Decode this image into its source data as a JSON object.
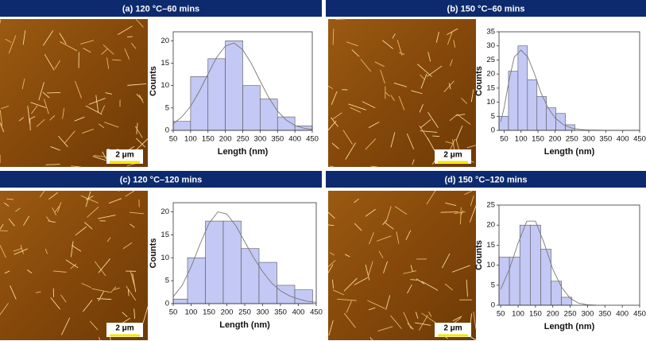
{
  "chart_data": [
    {
      "type": "histogram",
      "title": "(a) 120 °C–60 mins",
      "scale_bar": "2 μm",
      "x_label": "Length (nm)",
      "y_label": "Counts",
      "bins": [
        50,
        100,
        150,
        200,
        250,
        300,
        350,
        400,
        450
      ],
      "values": [
        2,
        12,
        16,
        20,
        10,
        7,
        3,
        1
      ],
      "color": "#c3c8f5",
      "fit": {
        "color": "#777777",
        "x": [
          50,
          75,
          100,
          125,
          150,
          175,
          200,
          225,
          250,
          275,
          300,
          325,
          350,
          375,
          400,
          425,
          450
        ],
        "values": [
          1.5,
          3.0,
          5.4,
          8.7,
          12.6,
          16.3,
          18.8,
          19.5,
          18.0,
          14.9,
          11.0,
          7.3,
          4.3,
          2.3,
          1.1,
          0.5,
          0.2
        ]
      },
      "xlim": [
        50,
        450
      ],
      "xticks": [
        50,
        100,
        150,
        200,
        250,
        300,
        350,
        400,
        450
      ],
      "ylim": [
        0,
        22
      ],
      "yticks": [
        0,
        5,
        10,
        15,
        20
      ]
    },
    {
      "type": "histogram",
      "title": "(b) 150 °C–60 mins",
      "scale_bar": "2 μm",
      "x_label": "Length (nm)",
      "y_label": "Counts",
      "bins": [
        35,
        63,
        91,
        119,
        147,
        175,
        203,
        231,
        259
      ],
      "values": [
        5,
        21,
        30,
        18,
        12,
        8,
        6,
        2
      ],
      "color": "#c3c8f5",
      "fit": {
        "color": "#777777",
        "x": [
          40,
          50,
          65,
          80,
          100,
          120,
          140,
          160,
          180,
          200,
          225,
          250,
          275,
          300,
          350,
          400,
          450
        ],
        "values": [
          3,
          8,
          18,
          26,
          28.5,
          26,
          20,
          13,
          8,
          4.5,
          2,
          0.8,
          0.3,
          0.1,
          0,
          0,
          0
        ]
      },
      "xlim": [
        35,
        450
      ],
      "xticks": [
        50,
        100,
        150,
        200,
        250,
        300,
        350,
        400,
        450
      ],
      "ylim": [
        0,
        35
      ],
      "yticks": [
        0,
        5,
        10,
        15,
        20,
        25,
        30,
        35
      ]
    },
    {
      "type": "histogram",
      "title": "(c) 120 °C–120 mins",
      "scale_bar": "2 μm",
      "x_label": "Length (nm)",
      "y_label": "Counts",
      "bins": [
        50,
        90,
        140,
        190,
        240,
        290,
        340,
        390,
        440
      ],
      "values": [
        1,
        10,
        18,
        18,
        12,
        9,
        4,
        3
      ],
      "color": "#c3c8f5",
      "fit": {
        "color": "#777777",
        "x": [
          50,
          75,
          100,
          125,
          150,
          175,
          200,
          225,
          250,
          275,
          300,
          325,
          350,
          375,
          400,
          425,
          450
        ],
        "values": [
          1.5,
          4,
          8,
          13,
          17.5,
          20,
          19.5,
          17,
          13.5,
          10,
          7,
          4.5,
          2.8,
          1.7,
          1,
          0.5,
          0.3
        ]
      },
      "xlim": [
        50,
        450
      ],
      "xticks": [
        50,
        100,
        150,
        200,
        250,
        300,
        350,
        400,
        450
      ],
      "ylim": [
        0,
        22
      ],
      "yticks": [
        0,
        5,
        10,
        15,
        20
      ]
    },
    {
      "type": "histogram",
      "title": "(d) 150 °C–120 mins",
      "scale_bar": "2 μm",
      "x_label": "Length (nm)",
      "y_label": "Counts",
      "bins": [
        45,
        75,
        105,
        135,
        165,
        195,
        225,
        255
      ],
      "values": [
        12,
        12,
        20,
        20,
        14,
        6,
        2
      ],
      "color": "#c3c8f5",
      "fit": {
        "color": "#777777",
        "x": [
          50,
          75,
          100,
          125,
          150,
          175,
          200,
          225,
          250,
          275,
          300,
          325
        ],
        "values": [
          4,
          9,
          15.5,
          21,
          21,
          15.5,
          9,
          4.5,
          1.7,
          0.5,
          0.1,
          0
        ]
      },
      "xlim": [
        45,
        450
      ],
      "xticks": [
        50,
        100,
        150,
        200,
        250,
        300,
        350,
        400,
        450
      ],
      "ylim": [
        0,
        25
      ],
      "yticks": [
        0,
        5,
        10,
        15,
        20,
        25
      ]
    }
  ]
}
